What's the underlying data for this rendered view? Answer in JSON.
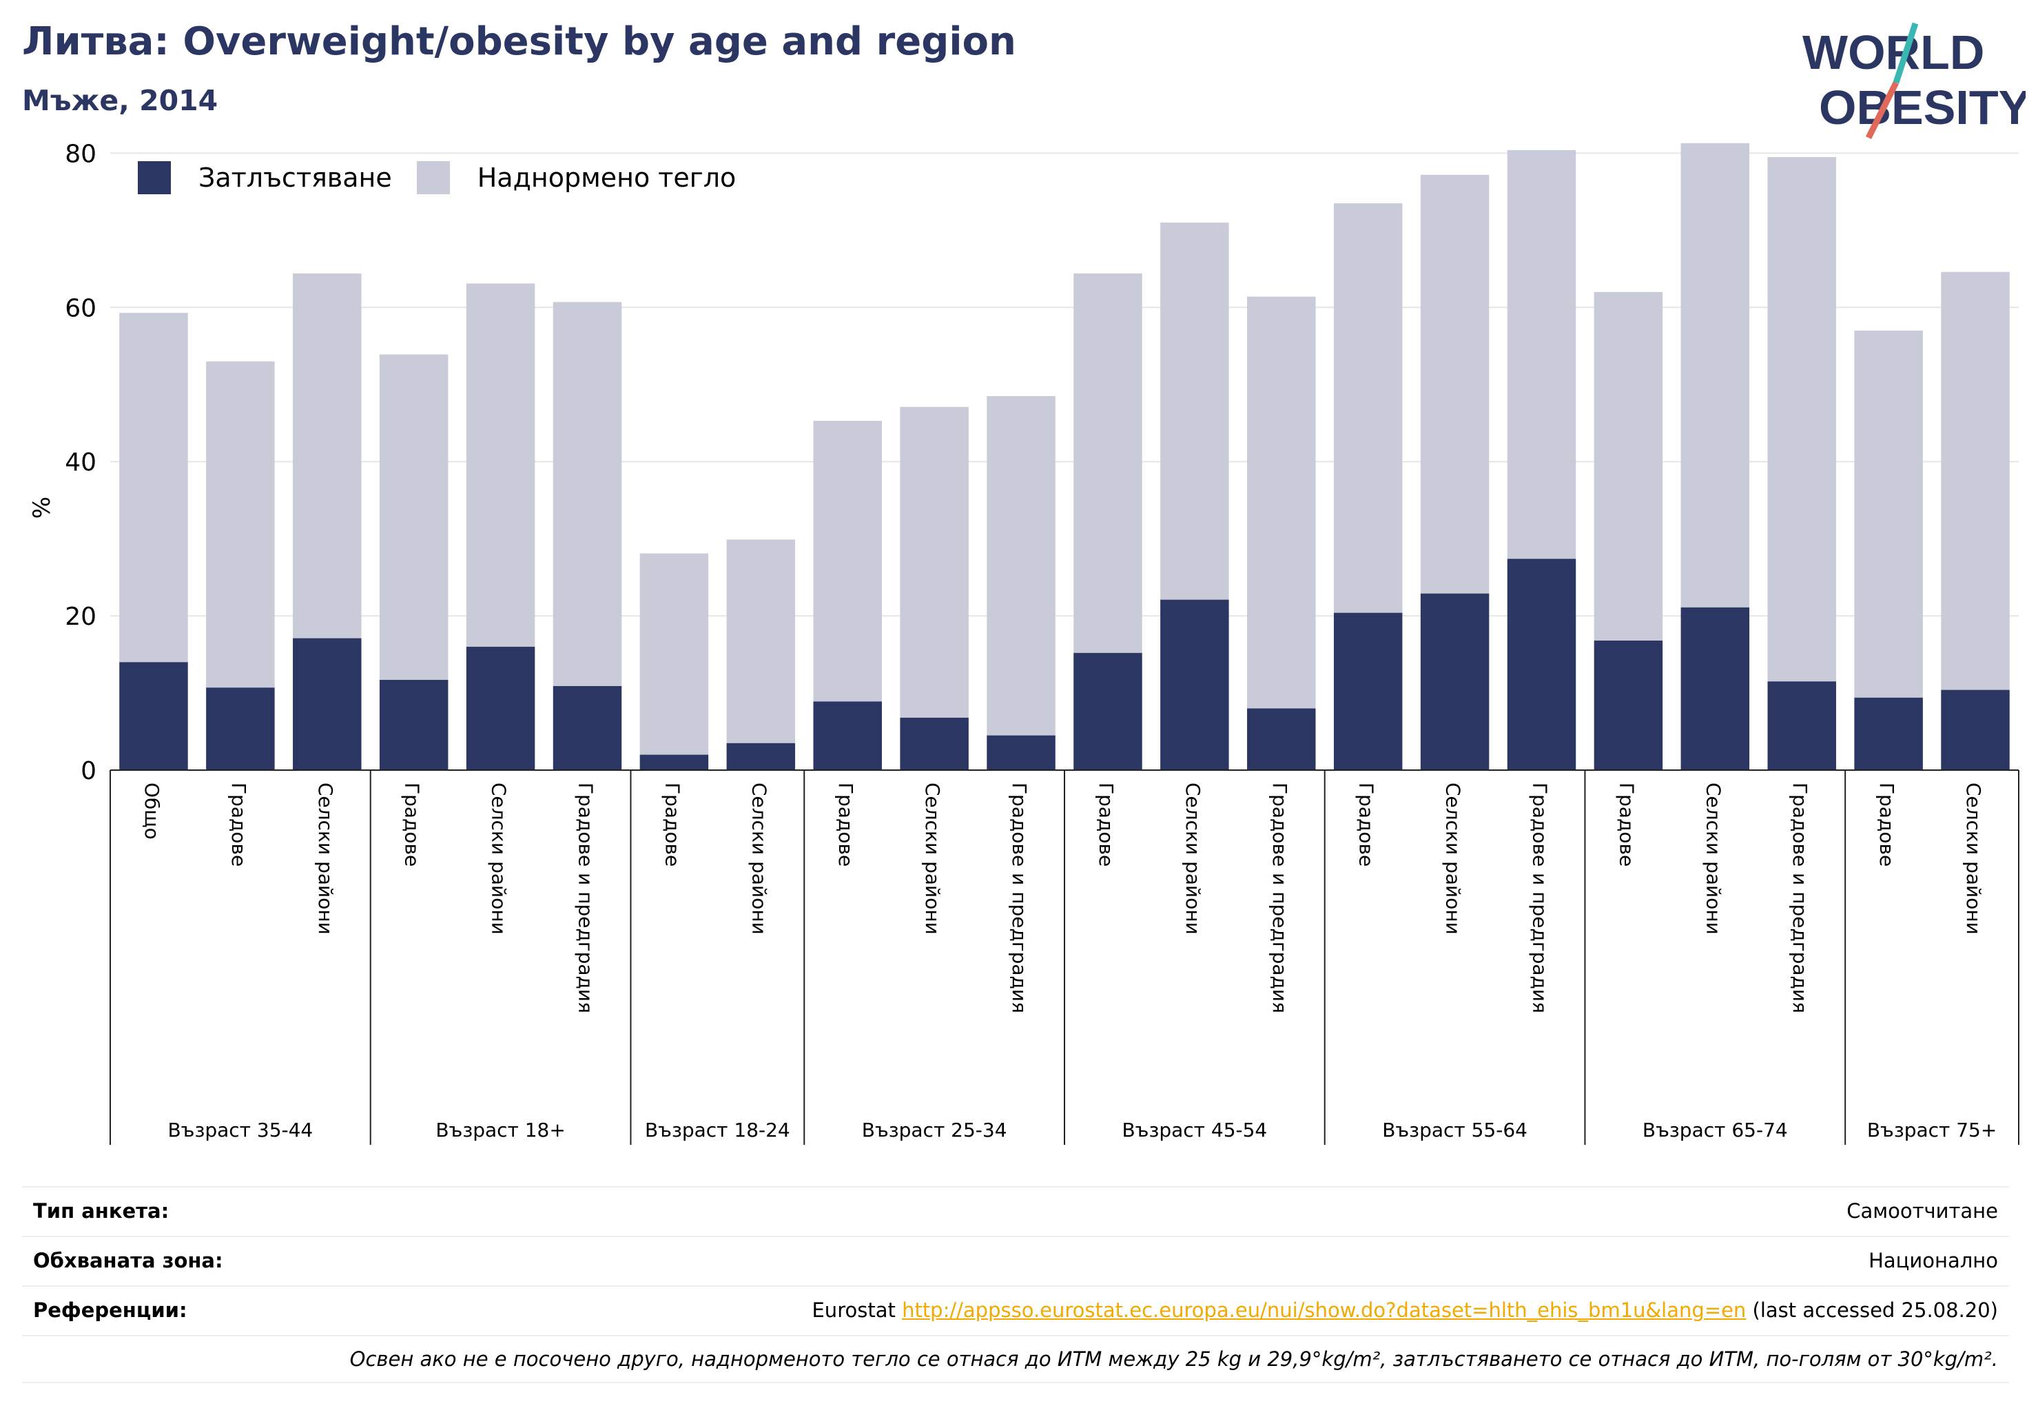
{
  "title": "Литва: Overweight/obesity by age and region",
  "subtitle": "Мъже, 2014",
  "logo": {
    "line1": "WORLD",
    "line2": "OBESITY"
  },
  "colors": {
    "obesity": "#2b3663",
    "overweight": "#c9cbd8",
    "accent_teal": "#3ab7b3",
    "accent_red": "#e06a5a",
    "link": "#f2a900"
  },
  "chart_data": {
    "type": "bar",
    "stacked": true,
    "ylabel": "%",
    "ylim": [
      0,
      82
    ],
    "yticks": [
      0,
      20,
      40,
      60,
      80
    ],
    "grid": true,
    "legend_position": "top-left",
    "series": [
      {
        "name": "Затлъстяване",
        "color": "#2b3663",
        "values": [
          14,
          10.7,
          17.1,
          11.7,
          16,
          10.9,
          2,
          3.5,
          8.9,
          6.8,
          4.5,
          15.2,
          22.1,
          8,
          20.4,
          22.9,
          27.4,
          16.8,
          21.1,
          11.5,
          9.4,
          10.4
        ]
      },
      {
        "name": "Наднормено тегло",
        "color": "#c9cbd8",
        "values": [
          45.3,
          42.3,
          47.3,
          42.2,
          47.1,
          49.8,
          26.1,
          26.4,
          36.4,
          40.3,
          44,
          49.2,
          48.9,
          53.4,
          53.1,
          54.3,
          53,
          45.2,
          60.2,
          68,
          47.6,
          54.2
        ]
      }
    ],
    "categories": [
      "Общо",
      "Градове",
      "Селски райони",
      "Градове",
      "Селски райони",
      "Градове и предградия",
      "Градове",
      "Селски райони",
      "Градове",
      "Селски райони",
      "Градове и предградия",
      "Градове",
      "Селски райони",
      "Градове и предградия",
      "Градове",
      "Селски райони",
      "Градове и предградия",
      "Градове",
      "Селски райони",
      "Градове и предградия",
      "Градове",
      "Селски райони"
    ],
    "groups": [
      {
        "label": "Възраст 35-44",
        "count": 3
      },
      {
        "label": "Възраст 18+",
        "count": 3
      },
      {
        "label": "Възраст 18-24",
        "count": 2
      },
      {
        "label": "Възраст 25-34",
        "count": 3
      },
      {
        "label": "Възраст 45-54",
        "count": 3
      },
      {
        "label": "Възраст 55-64",
        "count": 3
      },
      {
        "label": "Възраст 65-74",
        "count": 3
      },
      {
        "label": "Възраст 75+",
        "count": 2
      }
    ]
  },
  "info": {
    "survey_label": "Тип анкета:",
    "survey_value": "Самоотчитане",
    "area_label": "Обхваната зона:",
    "area_value": "Национално",
    "ref_label": "Референции:",
    "ref_prefix": "Eurostat ",
    "ref_link": "http://appsso.eurostat.ec.europa.eu/nui/show.do?dataset=hlth_ehis_bm1u&lang=en",
    "ref_suffix": " (last accessed 25.08.20)",
    "note": "Освен ако не е посочено друго, наднорменото тегло се отнася до ИТМ между 25 kg и 29,9°kg/m², затлъстяването се отнася до ИТМ, по-голям от 30°kg/m²."
  }
}
